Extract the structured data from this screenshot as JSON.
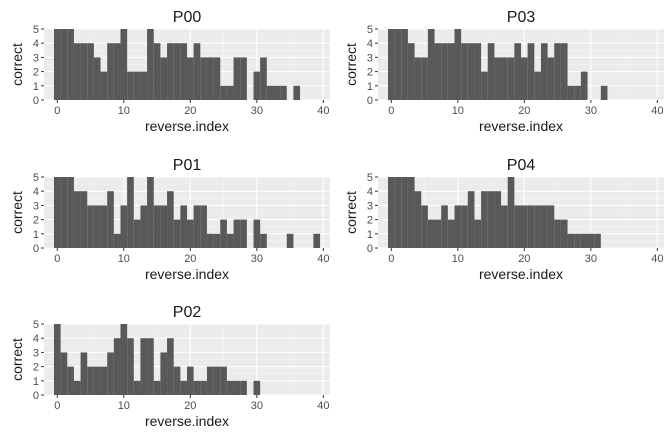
{
  "chart_data": [
    {
      "type": "bar",
      "title": "P00",
      "xlabel": "reverse.index",
      "ylabel": "correct",
      "xlim": [
        -2,
        41
      ],
      "ylim": [
        0,
        5
      ],
      "xticks": [
        0,
        10,
        20,
        30,
        40
      ],
      "yticks": [
        0,
        1,
        2,
        3,
        4,
        5
      ],
      "grid": true,
      "x": [
        0,
        1,
        2,
        3,
        4,
        5,
        6,
        7,
        8,
        9,
        10,
        11,
        12,
        13,
        14,
        15,
        16,
        17,
        18,
        19,
        20,
        21,
        22,
        23,
        24,
        25,
        26,
        27,
        28,
        29,
        30,
        31,
        32,
        33,
        34,
        35,
        36,
        37,
        38,
        39
      ],
      "values": [
        5,
        5,
        5,
        4,
        4,
        4,
        3,
        2,
        4,
        4,
        5,
        2,
        2,
        2,
        5,
        4,
        3,
        4,
        4,
        4,
        3,
        4,
        3,
        3,
        3,
        1,
        1,
        3,
        3,
        0,
        2,
        3,
        1,
        1,
        1,
        0,
        1,
        0,
        0,
        0
      ]
    },
    {
      "type": "bar",
      "title": "P03",
      "xlabel": "reverse.index",
      "ylabel": "correct",
      "xlim": [
        -2,
        41
      ],
      "ylim": [
        0,
        5
      ],
      "xticks": [
        0,
        10,
        20,
        30,
        40
      ],
      "yticks": [
        0,
        1,
        2,
        3,
        4,
        5
      ],
      "grid": true,
      "x": [
        0,
        1,
        2,
        3,
        4,
        5,
        6,
        7,
        8,
        9,
        10,
        11,
        12,
        13,
        14,
        15,
        16,
        17,
        18,
        19,
        20,
        21,
        22,
        23,
        24,
        25,
        26,
        27,
        28,
        29,
        30,
        31,
        32,
        33,
        34,
        35,
        36,
        37,
        38,
        39
      ],
      "values": [
        5,
        5,
        5,
        4,
        3,
        3,
        5,
        4,
        4,
        4,
        5,
        4,
        4,
        4,
        2,
        4,
        3,
        3,
        3,
        4,
        3,
        4,
        2,
        4,
        3,
        4,
        4,
        1,
        1,
        2,
        0,
        0,
        1,
        0,
        0,
        0,
        0,
        0,
        0,
        0
      ]
    },
    {
      "type": "bar",
      "title": "P01",
      "xlabel": "reverse.index",
      "ylabel": "correct",
      "xlim": [
        -2,
        41
      ],
      "ylim": [
        0,
        5
      ],
      "xticks": [
        0,
        10,
        20,
        30,
        40
      ],
      "yticks": [
        0,
        1,
        2,
        3,
        4,
        5
      ],
      "grid": true,
      "x": [
        0,
        1,
        2,
        3,
        4,
        5,
        6,
        7,
        8,
        9,
        10,
        11,
        12,
        13,
        14,
        15,
        16,
        17,
        18,
        19,
        20,
        21,
        22,
        23,
        24,
        25,
        26,
        27,
        28,
        29,
        30,
        31,
        32,
        33,
        34,
        35,
        36,
        37,
        38,
        39
      ],
      "values": [
        5,
        5,
        5,
        4,
        4,
        3,
        3,
        3,
        4,
        1,
        3,
        5,
        2,
        3,
        5,
        3,
        3,
        4,
        2,
        3,
        2,
        3,
        3,
        1,
        1,
        2,
        1,
        2,
        2,
        0,
        2,
        1,
        0,
        0,
        0,
        1,
        0,
        0,
        0,
        1
      ]
    },
    {
      "type": "bar",
      "title": "P04",
      "xlabel": "reverse.index",
      "ylabel": "correct",
      "xlim": [
        -2,
        41
      ],
      "ylim": [
        0,
        5
      ],
      "xticks": [
        0,
        10,
        20,
        30,
        40
      ],
      "yticks": [
        0,
        1,
        2,
        3,
        4,
        5
      ],
      "grid": true,
      "x": [
        0,
        1,
        2,
        3,
        4,
        5,
        6,
        7,
        8,
        9,
        10,
        11,
        12,
        13,
        14,
        15,
        16,
        17,
        18,
        19,
        20,
        21,
        22,
        23,
        24,
        25,
        26,
        27,
        28,
        29,
        30,
        31,
        32,
        33,
        34,
        35,
        36,
        37,
        38,
        39
      ],
      "values": [
        5,
        5,
        5,
        5,
        4,
        3,
        2,
        2,
        3,
        2,
        3,
        3,
        4,
        2,
        4,
        4,
        4,
        3,
        5,
        3,
        3,
        3,
        3,
        3,
        3,
        2,
        2,
        1,
        1,
        1,
        1,
        1,
        0,
        0,
        0,
        0,
        0,
        0,
        0,
        0
      ]
    },
    {
      "type": "bar",
      "title": "P02",
      "xlabel": "reverse.index",
      "ylabel": "correct",
      "xlim": [
        -2,
        41
      ],
      "ylim": [
        0,
        5
      ],
      "xticks": [
        0,
        10,
        20,
        30,
        40
      ],
      "yticks": [
        0,
        1,
        2,
        3,
        4,
        5
      ],
      "grid": true,
      "x": [
        0,
        1,
        2,
        3,
        4,
        5,
        6,
        7,
        8,
        9,
        10,
        11,
        12,
        13,
        14,
        15,
        16,
        17,
        18,
        19,
        20,
        21,
        22,
        23,
        24,
        25,
        26,
        27,
        28,
        29,
        30,
        31,
        32,
        33,
        34,
        35,
        36,
        37,
        38,
        39
      ],
      "values": [
        5,
        3,
        2,
        1,
        3,
        2,
        2,
        2,
        3,
        4,
        5,
        4,
        1,
        4,
        4,
        1,
        3,
        4,
        2,
        1,
        2,
        1,
        1,
        2,
        2,
        2,
        1,
        1,
        1,
        0,
        1,
        0,
        0,
        0,
        0,
        0,
        0,
        0,
        0,
        0
      ]
    }
  ]
}
